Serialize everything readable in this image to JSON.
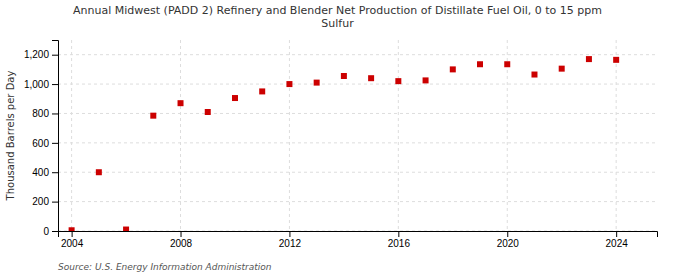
{
  "chart_data": {
    "type": "scatter",
    "title": "Annual Midwest (PADD 2) Refinery and Blender Net Production of Distillate Fuel Oil, 0 to 15 ppm\nSulfur",
    "ylabel": "Thousand Barrels per Day",
    "source": "Source: U.S. Energy Information Administration",
    "x": [
      2004,
      2005,
      2006,
      2007,
      2008,
      2009,
      2010,
      2011,
      2012,
      2013,
      2014,
      2015,
      2016,
      2017,
      2018,
      2019,
      2020,
      2021,
      2022,
      2023,
      2024
    ],
    "values": [
      5,
      400,
      10,
      785,
      870,
      810,
      905,
      950,
      1000,
      1010,
      1055,
      1040,
      1020,
      1025,
      1100,
      1135,
      1135,
      1065,
      1105,
      1170,
      1165
    ],
    "color": "#cc0000",
    "marker": "square",
    "xlim": [
      2003.5,
      2025.5
    ],
    "ylim": [
      0,
      1300
    ],
    "xticks": [
      2004,
      2008,
      2012,
      2016,
      2020,
      2024
    ],
    "yticks": [
      0,
      200,
      400,
      600,
      800,
      {
        "value": 1000,
        "label": "1,000"
      },
      {
        "value": 1200,
        "label": "1,200"
      }
    ],
    "grid": true
  }
}
